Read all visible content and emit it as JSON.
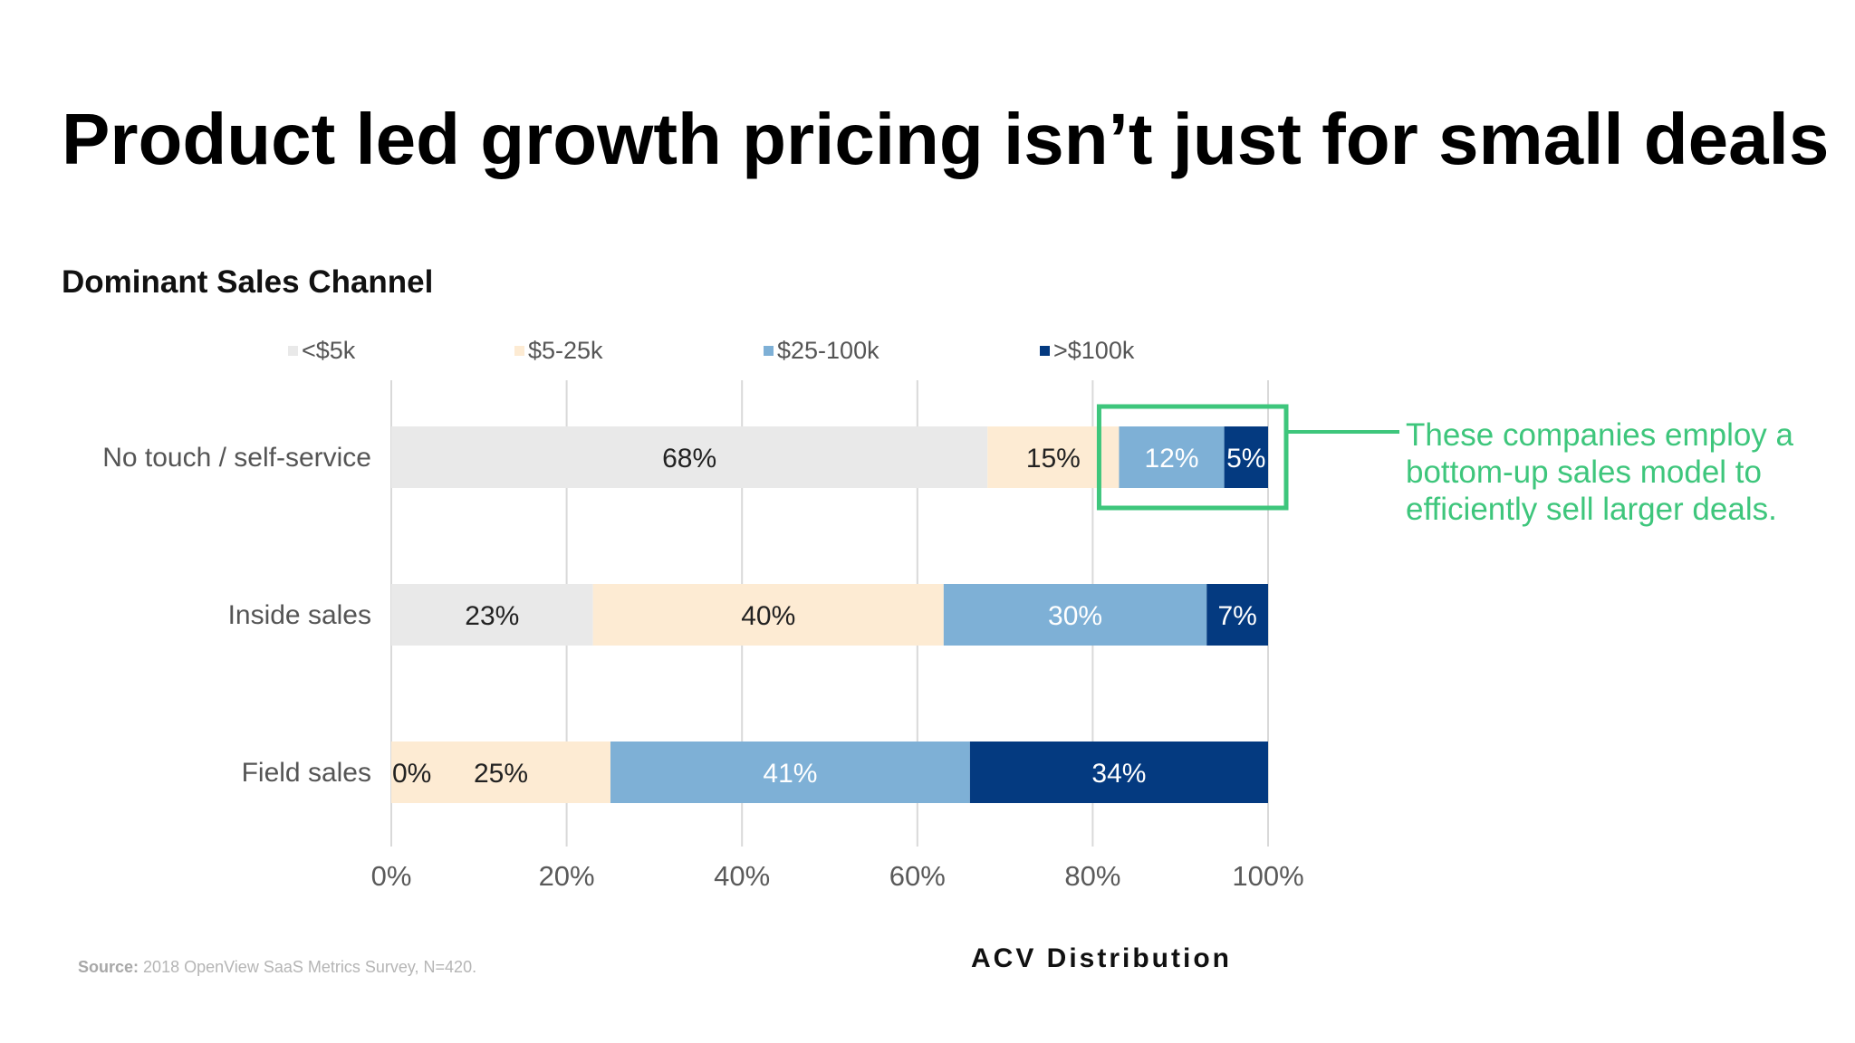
{
  "slide_title": "Product led growth pricing isn’t just for small deals",
  "callout": {
    "text": "These companies employ a bottom-up sales model to efficiently sell larger deals."
  },
  "source": {
    "label": "Source:",
    "text": "2018 OpenView SaaS Metrics Survey, N=420."
  },
  "chart_data": {
    "type": "bar",
    "orientation": "horizontal",
    "stacked": true,
    "title": "Dominant Sales Channel",
    "xlabel": "ACV Distribution",
    "ylabel": "",
    "xlim": [
      0,
      100
    ],
    "x_ticks": [
      "0%",
      "20%",
      "40%",
      "60%",
      "80%",
      "100%"
    ],
    "grid": true,
    "legend_position": "top",
    "categories": [
      "No touch / self-service",
      "Inside sales",
      "Field sales"
    ],
    "series": [
      {
        "name": "<$5k",
        "color": "#e9e9e9",
        "label_color": "#222222",
        "values": [
          68,
          23,
          0
        ],
        "labels": [
          "68%",
          "23%",
          "0%"
        ]
      },
      {
        "name": "$5-25k",
        "color": "#fdebd3",
        "label_color": "#222222",
        "values": [
          15,
          40,
          25
        ],
        "labels": [
          "15%",
          "40%",
          "25%"
        ]
      },
      {
        "name": "$25-100k",
        "color": "#7eb0d6",
        "label_color": "#ffffff",
        "values": [
          12,
          30,
          41
        ],
        "labels": [
          "12%",
          "30%",
          "41%"
        ]
      },
      {
        "name": ">$100k",
        "color": "#043a80",
        "label_color": "#ffffff",
        "values": [
          5,
          7,
          34
        ],
        "labels": [
          "5%",
          "7%",
          "34%"
        ]
      }
    ],
    "highlight_color": "#3ec67c"
  }
}
